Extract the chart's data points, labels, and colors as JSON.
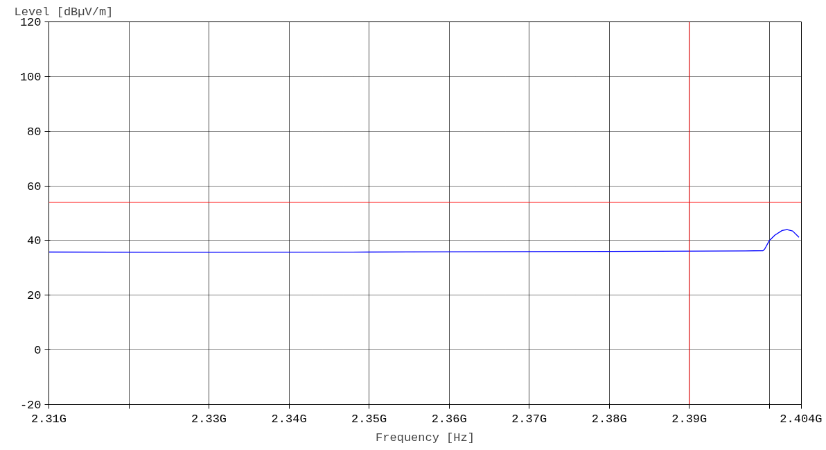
{
  "chart_data": {
    "type": "line",
    "xlabel": "Frequency [Hz]",
    "ylabel": "Level [dBµV/m]",
    "xlim": [
      2.31,
      2.404
    ],
    "xticks": [
      {
        "value": 2.31,
        "label": "2.31G"
      },
      {
        "value": 2.32,
        "label": null
      },
      {
        "value": 2.33,
        "label": "2.33G"
      },
      {
        "value": 2.34,
        "label": "2.34G"
      },
      {
        "value": 2.35,
        "label": "2.35G"
      },
      {
        "value": 2.36,
        "label": "2.36G"
      },
      {
        "value": 2.37,
        "label": "2.37G"
      },
      {
        "value": 2.38,
        "label": "2.38G"
      },
      {
        "value": 2.39,
        "label": "2.39G"
      },
      {
        "value": 2.4,
        "label": null
      },
      {
        "value": 2.404,
        "label": "2.404G"
      }
    ],
    "ylim": [
      -20,
      120
    ],
    "yticks": [
      -20,
      0,
      20,
      40,
      60,
      80,
      100,
      120
    ],
    "grid": true,
    "marker": "none",
    "line_style": "solid",
    "ref_lines": [
      {
        "axis": "y",
        "value": 54,
        "label": null,
        "color": "#ff0000"
      },
      {
        "axis": "x",
        "value": 2.39,
        "label": null,
        "color": "#ff0000"
      }
    ],
    "series": [
      {
        "color": "#0000ff",
        "x": [
          2.31,
          2.33,
          2.35,
          2.36,
          2.38,
          2.397,
          2.3992,
          2.3994,
          2.4,
          2.4007,
          2.4016,
          2.4022,
          2.4029,
          2.4037
        ],
        "values": [
          35.8,
          35.7,
          35.8,
          35.9,
          36.0,
          36.2,
          36.3,
          36.8,
          40,
          42,
          43.7,
          44,
          43.5,
          41.2
        ]
      }
    ]
  }
}
